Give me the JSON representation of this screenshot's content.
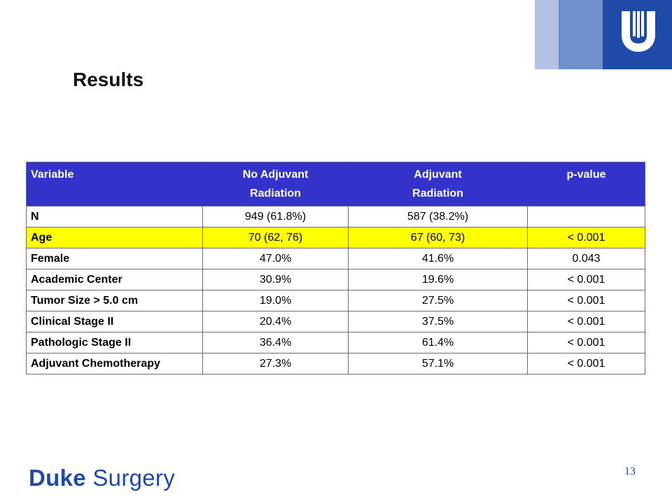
{
  "slide": {
    "title": "Results",
    "page_number": "13"
  },
  "logo": {
    "name": "Duke Surgery",
    "word_bold": "Duke",
    "word_regular": "Surgery",
    "color": "#1f4aa8"
  },
  "table": {
    "header_color": "#3333cc",
    "highlight_color": "#ffff00",
    "headers": {
      "variable": "Variable",
      "no_adjuvant_line1": "No Adjuvant",
      "no_adjuvant_line2": "Radiation",
      "adjuvant_line1": "Adjuvant",
      "adjuvant_line2": "Radiation",
      "p_value": "p-value"
    },
    "rows": [
      {
        "variable": "N",
        "no_adjuvant": "949 (61.8%)",
        "adjuvant": "587 (38.2%)",
        "p_value": ""
      },
      {
        "variable": "Age",
        "no_adjuvant": "70 (62, 76)",
        "adjuvant": "67 (60, 73)",
        "p_value": "< 0.001"
      },
      {
        "variable": "Female",
        "no_adjuvant": "47.0%",
        "adjuvant": "41.6%",
        "p_value": "0.043"
      },
      {
        "variable": "Academic Center",
        "no_adjuvant": "30.9%",
        "adjuvant": "19.6%",
        "p_value": "< 0.001"
      },
      {
        "variable": "Tumor Size > 5.0 cm",
        "no_adjuvant": "19.0%",
        "adjuvant": "27.5%",
        "p_value": "< 0.001"
      },
      {
        "variable": "Clinical Stage II",
        "no_adjuvant": "20.4%",
        "adjuvant": "37.5%",
        "p_value": "< 0.001"
      },
      {
        "variable": "Pathologic Stage II",
        "no_adjuvant": "36.4%",
        "adjuvant": "61.4%",
        "p_value": "< 0.001"
      },
      {
        "variable": "Adjuvant Chemotherapy",
        "no_adjuvant": "27.3%",
        "adjuvant": "57.1%",
        "p_value": "< 0.001"
      }
    ]
  }
}
